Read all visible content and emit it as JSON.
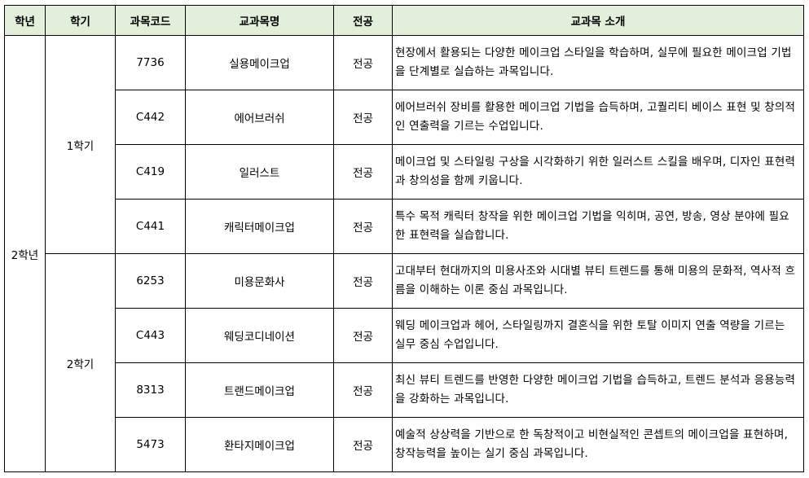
{
  "headers": [
    "학년",
    "학기",
    "과목코드",
    "교과목명",
    "전공",
    "교과목 소개"
  ],
  "year": "2학년",
  "semesters": [
    "1학기",
    "2학기"
  ],
  "colors": {
    "header_bg": "#e2efda",
    "border": "#000000"
  },
  "rows": [
    {
      "code": "7736",
      "name": "실용메이크업",
      "type": "전공",
      "desc": "현장에서 활용되는 다양한 메이크업 스타일을 학습하며, 실무에 필요한 메이크업 기법을 단계별로 실습하는 과목입니다."
    },
    {
      "code": "C442",
      "name": "에어브러쉬",
      "type": "전공",
      "desc": "에어브러쉬 장비를 활용한 메이크업 기법을 습득하며, 고퀄리티 베이스 표현 및 창의적인 연출력을 기르는 수업입니다."
    },
    {
      "code": "C419",
      "name": "일러스트",
      "type": "전공",
      "desc": "메이크업 및 스타일링 구상을 시각화하기 위한 일러스트 스킬을 배우며, 디자인 표현력과 창의성을 함께 키웁니다."
    },
    {
      "code": "C441",
      "name": "캐릭터메이크업",
      "type": "전공",
      "desc": "특수 목적 캐릭터 창작을 위한 메이크업 기법을 익히며, 공연, 방송, 영상 분야에 필요한 표현력을 실습합니다."
    },
    {
      "code": "6253",
      "name": "미용문화사",
      "type": "전공",
      "desc": "고대부터 현대까지의 미용사조와 시대별 뷰티 트렌드를 통해 미용의 문화적, 역사적 흐름을 이해하는 이론 중심 과목입니다."
    },
    {
      "code": "C443",
      "name": "웨딩코디네이션",
      "type": "전공",
      "desc": "웨딩 메이크업과 헤어, 스타일링까지 결혼식을 위한 토탈 이미지 연출 역량을 기르는 실무 중심 수업입니다."
    },
    {
      "code": "8313",
      "name": "트랜드메이크업",
      "type": "전공",
      "desc": "최신 뷰티 트렌드를 반영한 다양한 메이크업 기법을 습득하고, 트렌드 분석과 응용능력을 강화하는 과목입니다."
    },
    {
      "code": "5473",
      "name": "환타지메이크업",
      "type": "전공",
      "desc": "예술적 상상력을 기반으로 한 독창적이고 비현실적인 콘셉트의 메이크업을 표현하며, 창작능력을 높이는 실기 중심 과목입니다."
    }
  ]
}
